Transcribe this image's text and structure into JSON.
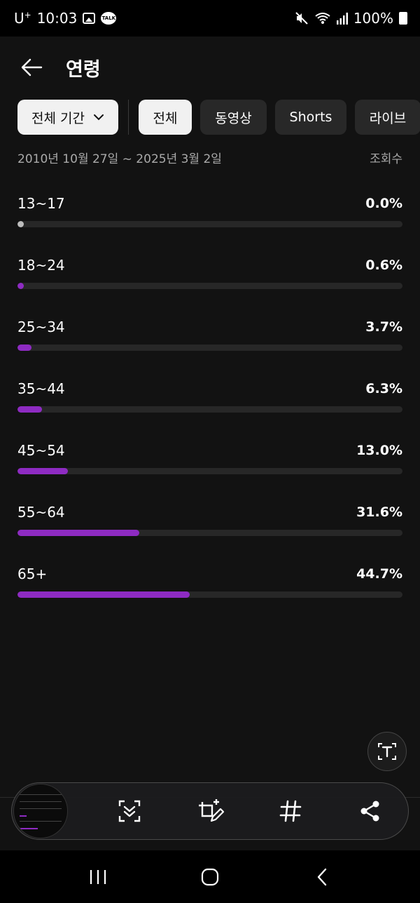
{
  "status_bar": {
    "carrier": "U",
    "carrier_sup": "+",
    "time": "10:03",
    "talk_badge": "TALK",
    "battery": "100%"
  },
  "header": {
    "title": "연령"
  },
  "filters": {
    "period": "전체 기간",
    "types": [
      {
        "label": "전체",
        "active": true
      },
      {
        "label": "동영상",
        "active": false
      },
      {
        "label": "Shorts",
        "active": false
      },
      {
        "label": "라이브",
        "active": false
      }
    ]
  },
  "date_range": "2010년 10월 27일 ~ 2025년 3월 2일",
  "metric_label": "조회수",
  "age_groups": [
    {
      "label": "13~17",
      "percent_text": "0.0%",
      "value": 0.0
    },
    {
      "label": "18~24",
      "percent_text": "0.6%",
      "value": 0.6
    },
    {
      "label": "25~34",
      "percent_text": "3.7%",
      "value": 3.7
    },
    {
      "label": "35~44",
      "percent_text": "6.3%",
      "value": 6.3
    },
    {
      "label": "45~54",
      "percent_text": "13.0%",
      "value": 13.0
    },
    {
      "label": "55~64",
      "percent_text": "31.6%",
      "value": 31.6
    },
    {
      "label": "65+",
      "percent_text": "44.7%",
      "value": 44.7
    }
  ],
  "colors": {
    "accent": "#8e2bc2",
    "track": "#272727",
    "background": "#121212"
  },
  "toolbar_icons": [
    "scroll-capture-icon",
    "crop-edit-icon",
    "hashtag-icon",
    "share-icon"
  ]
}
